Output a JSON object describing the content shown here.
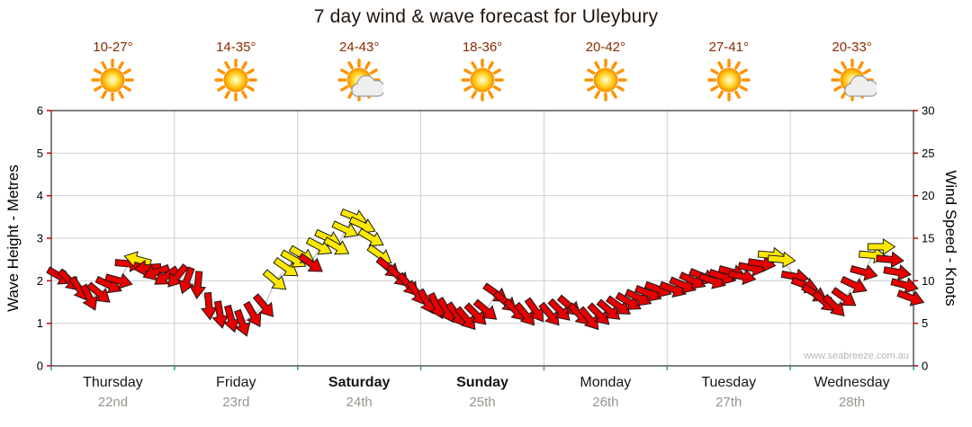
{
  "title": "7 day wind & wave forecast for Uleybury",
  "watermark": "www.seabreeze.com.au",
  "forecast_days": [
    {
      "name": "Thursday",
      "date": "22nd",
      "temp": "10-27°",
      "icon": "sunny",
      "bold": false
    },
    {
      "name": "Friday",
      "date": "23rd",
      "temp": "14-35°",
      "icon": "sunny",
      "bold": false
    },
    {
      "name": "Saturday",
      "date": "24th",
      "temp": "24-43°",
      "icon": "partly-cloudy",
      "bold": true
    },
    {
      "name": "Sunday",
      "date": "25th",
      "temp": "18-36°",
      "icon": "sunny",
      "bold": true
    },
    {
      "name": "Monday",
      "date": "26th",
      "temp": "20-42°",
      "icon": "sunny",
      "bold": false
    },
    {
      "name": "Tuesday",
      "date": "27th",
      "temp": "27-41°",
      "icon": "sunny",
      "bold": false
    },
    {
      "name": "Wednesday",
      "date": "28th",
      "temp": "20-33°",
      "icon": "partly-cloudy",
      "bold": false
    }
  ],
  "chart_data": {
    "type": "wind-arrow-timeseries",
    "title": "7 day wind & wave forecast for Uleybury",
    "left_axis": {
      "label": "Wave Height - Metres",
      "min": 0,
      "max": 6,
      "ticks": [
        0,
        1,
        2,
        3,
        4,
        5,
        6
      ]
    },
    "right_axis": {
      "label": "Wind Speed - Knots",
      "min": 0,
      "max": 30,
      "ticks": [
        0,
        5,
        10,
        15,
        20,
        25,
        30
      ]
    },
    "grid": true,
    "colors": {
      "arrow_normal": "#e60000",
      "arrow_strong": "#ffe800",
      "arrow_outline": "#1a1a1a",
      "grid": "#cfcfcf",
      "axis": "#000000",
      "y_tick": "#cc0000",
      "x_tick": "#2f9e9e",
      "connector": "#b3b3b3"
    },
    "points_note": "t = days from start of Thursday (0-7); knots = wind speed read on right axis (estimated); dir = compass degrees wind blowing toward (estimated); strength strong = yellow arrow",
    "points": [
      {
        "t": 0.07,
        "knots": 10.5,
        "dir": 120,
        "strength": "normal"
      },
      {
        "t": 0.15,
        "knots": 10.0,
        "dir": 135,
        "strength": "normal"
      },
      {
        "t": 0.23,
        "knots": 9.0,
        "dir": 145,
        "strength": "normal"
      },
      {
        "t": 0.31,
        "knots": 8.0,
        "dir": 155,
        "strength": "normal"
      },
      {
        "t": 0.39,
        "knots": 8.5,
        "dir": 130,
        "strength": "normal"
      },
      {
        "t": 0.47,
        "knots": 9.5,
        "dir": 115,
        "strength": "normal"
      },
      {
        "t": 0.55,
        "knots": 10.0,
        "dir": 105,
        "strength": "normal"
      },
      {
        "t": 0.63,
        "knots": 12.0,
        "dir": 95,
        "strength": "normal"
      },
      {
        "t": 0.7,
        "knots": 12.5,
        "dir": 285,
        "strength": "strong"
      },
      {
        "t": 0.78,
        "knots": 11.5,
        "dir": 265,
        "strength": "normal"
      },
      {
        "t": 0.85,
        "knots": 11.0,
        "dir": 250,
        "strength": "normal"
      },
      {
        "t": 0.93,
        "knots": 10.5,
        "dir": 235,
        "strength": "normal"
      },
      {
        "t": 1.02,
        "knots": 10.5,
        "dir": 220,
        "strength": "normal"
      },
      {
        "t": 1.1,
        "knots": 10.0,
        "dir": 200,
        "strength": "normal"
      },
      {
        "t": 1.19,
        "knots": 9.5,
        "dir": 185,
        "strength": "normal"
      },
      {
        "t": 1.28,
        "knots": 7.0,
        "dir": 175,
        "strength": "normal"
      },
      {
        "t": 1.37,
        "knots": 6.0,
        "dir": 170,
        "strength": "normal"
      },
      {
        "t": 1.46,
        "knots": 5.5,
        "dir": 165,
        "strength": "normal"
      },
      {
        "t": 1.55,
        "knots": 5.0,
        "dir": 160,
        "strength": "normal"
      },
      {
        "t": 1.64,
        "knots": 6.0,
        "dir": 150,
        "strength": "normal"
      },
      {
        "t": 1.73,
        "knots": 7.0,
        "dir": 140,
        "strength": "normal"
      },
      {
        "t": 1.82,
        "knots": 10.0,
        "dir": 130,
        "strength": "strong"
      },
      {
        "t": 1.91,
        "knots": 11.5,
        "dir": 125,
        "strength": "strong"
      },
      {
        "t": 1.97,
        "knots": 12.5,
        "dir": 120,
        "strength": "strong"
      },
      {
        "t": 2.04,
        "knots": 13.0,
        "dir": 120,
        "strength": "strong"
      },
      {
        "t": 2.11,
        "knots": 12.0,
        "dir": 125,
        "strength": "normal"
      },
      {
        "t": 2.18,
        "knots": 14.0,
        "dir": 118,
        "strength": "strong"
      },
      {
        "t": 2.25,
        "knots": 15.0,
        "dir": 115,
        "strength": "strong"
      },
      {
        "t": 2.32,
        "knots": 14.0,
        "dir": 120,
        "strength": "strong"
      },
      {
        "t": 2.39,
        "knots": 16.0,
        "dir": 115,
        "strength": "strong"
      },
      {
        "t": 2.46,
        "knots": 17.5,
        "dir": 112,
        "strength": "strong"
      },
      {
        "t": 2.53,
        "knots": 16.5,
        "dir": 115,
        "strength": "strong"
      },
      {
        "t": 2.6,
        "knots": 15.0,
        "dir": 120,
        "strength": "strong"
      },
      {
        "t": 2.67,
        "knots": 13.0,
        "dir": 125,
        "strength": "strong"
      },
      {
        "t": 2.74,
        "knots": 11.5,
        "dir": 130,
        "strength": "normal"
      },
      {
        "t": 2.82,
        "knots": 10.5,
        "dir": 135,
        "strength": "normal"
      },
      {
        "t": 2.9,
        "knots": 9.5,
        "dir": 140,
        "strength": "normal"
      },
      {
        "t": 2.97,
        "knots": 8.5,
        "dir": 145,
        "strength": "normal"
      },
      {
        "t": 3.05,
        "knots": 7.5,
        "dir": 150,
        "strength": "normal"
      },
      {
        "t": 3.13,
        "knots": 7.0,
        "dir": 155,
        "strength": "normal"
      },
      {
        "t": 3.21,
        "knots": 6.5,
        "dir": 150,
        "strength": "normal"
      },
      {
        "t": 3.29,
        "knots": 6.0,
        "dir": 145,
        "strength": "normal"
      },
      {
        "t": 3.37,
        "knots": 5.5,
        "dir": 140,
        "strength": "normal"
      },
      {
        "t": 3.45,
        "knots": 6.0,
        "dir": 135,
        "strength": "normal"
      },
      {
        "t": 3.53,
        "knots": 6.5,
        "dir": 130,
        "strength": "normal"
      },
      {
        "t": 3.61,
        "knots": 8.5,
        "dir": 125,
        "strength": "normal"
      },
      {
        "t": 3.69,
        "knots": 7.5,
        "dir": 130,
        "strength": "normal"
      },
      {
        "t": 3.77,
        "knots": 6.5,
        "dir": 135,
        "strength": "normal"
      },
      {
        "t": 3.85,
        "knots": 6.0,
        "dir": 140,
        "strength": "normal"
      },
      {
        "t": 3.93,
        "knots": 6.5,
        "dir": 145,
        "strength": "normal"
      },
      {
        "t": 4.05,
        "knots": 6.0,
        "dir": 140,
        "strength": "normal"
      },
      {
        "t": 4.13,
        "knots": 6.5,
        "dir": 135,
        "strength": "normal"
      },
      {
        "t": 4.21,
        "knots": 7.0,
        "dir": 130,
        "strength": "normal"
      },
      {
        "t": 4.29,
        "knots": 6.0,
        "dir": 135,
        "strength": "normal"
      },
      {
        "t": 4.37,
        "knots": 5.5,
        "dir": 140,
        "strength": "normal"
      },
      {
        "t": 4.45,
        "knots": 6.0,
        "dir": 135,
        "strength": "normal"
      },
      {
        "t": 4.53,
        "knots": 6.5,
        "dir": 130,
        "strength": "normal"
      },
      {
        "t": 4.61,
        "knots": 7.0,
        "dir": 125,
        "strength": "normal"
      },
      {
        "t": 4.69,
        "knots": 7.5,
        "dir": 120,
        "strength": "normal"
      },
      {
        "t": 4.77,
        "knots": 8.0,
        "dir": 115,
        "strength": "normal"
      },
      {
        "t": 4.85,
        "knots": 8.5,
        "dir": 112,
        "strength": "normal"
      },
      {
        "t": 4.93,
        "knots": 9.0,
        "dir": 110,
        "strength": "normal"
      },
      {
        "t": 5.05,
        "knots": 9.0,
        "dir": 110,
        "strength": "normal"
      },
      {
        "t": 5.13,
        "knots": 9.5,
        "dir": 112,
        "strength": "normal"
      },
      {
        "t": 5.21,
        "knots": 10.0,
        "dir": 115,
        "strength": "normal"
      },
      {
        "t": 5.29,
        "knots": 10.5,
        "dir": 112,
        "strength": "normal"
      },
      {
        "t": 5.37,
        "knots": 10.0,
        "dir": 110,
        "strength": "normal"
      },
      {
        "t": 5.45,
        "knots": 10.5,
        "dir": 108,
        "strength": "normal"
      },
      {
        "t": 5.53,
        "knots": 11.0,
        "dir": 105,
        "strength": "normal"
      },
      {
        "t": 5.61,
        "knots": 10.5,
        "dir": 102,
        "strength": "normal"
      },
      {
        "t": 5.69,
        "knots": 11.5,
        "dir": 100,
        "strength": "normal"
      },
      {
        "t": 5.77,
        "knots": 12.0,
        "dir": 98,
        "strength": "normal"
      },
      {
        "t": 5.85,
        "knots": 13.0,
        "dir": 95,
        "strength": "strong"
      },
      {
        "t": 5.93,
        "knots": 12.5,
        "dir": 95,
        "strength": "strong"
      },
      {
        "t": 6.04,
        "knots": 10.5,
        "dir": 100,
        "strength": "normal"
      },
      {
        "t": 6.12,
        "knots": 9.5,
        "dir": 110,
        "strength": "normal"
      },
      {
        "t": 6.2,
        "knots": 8.5,
        "dir": 120,
        "strength": "normal"
      },
      {
        "t": 6.28,
        "knots": 7.5,
        "dir": 130,
        "strength": "normal"
      },
      {
        "t": 6.36,
        "knots": 7.0,
        "dir": 135,
        "strength": "normal"
      },
      {
        "t": 6.44,
        "knots": 8.0,
        "dir": 125,
        "strength": "normal"
      },
      {
        "t": 6.52,
        "knots": 9.5,
        "dir": 115,
        "strength": "normal"
      },
      {
        "t": 6.6,
        "knots": 11.0,
        "dir": 105,
        "strength": "normal"
      },
      {
        "t": 6.67,
        "knots": 13.0,
        "dir": 95,
        "strength": "strong"
      },
      {
        "t": 6.74,
        "knots": 14.0,
        "dir": 90,
        "strength": "strong"
      },
      {
        "t": 6.81,
        "knots": 12.5,
        "dir": 95,
        "strength": "normal"
      },
      {
        "t": 6.87,
        "knots": 11.0,
        "dir": 100,
        "strength": "normal"
      },
      {
        "t": 6.93,
        "knots": 9.5,
        "dir": 105,
        "strength": "normal"
      },
      {
        "t": 6.98,
        "knots": 8.0,
        "dir": 110,
        "strength": "normal"
      }
    ]
  }
}
